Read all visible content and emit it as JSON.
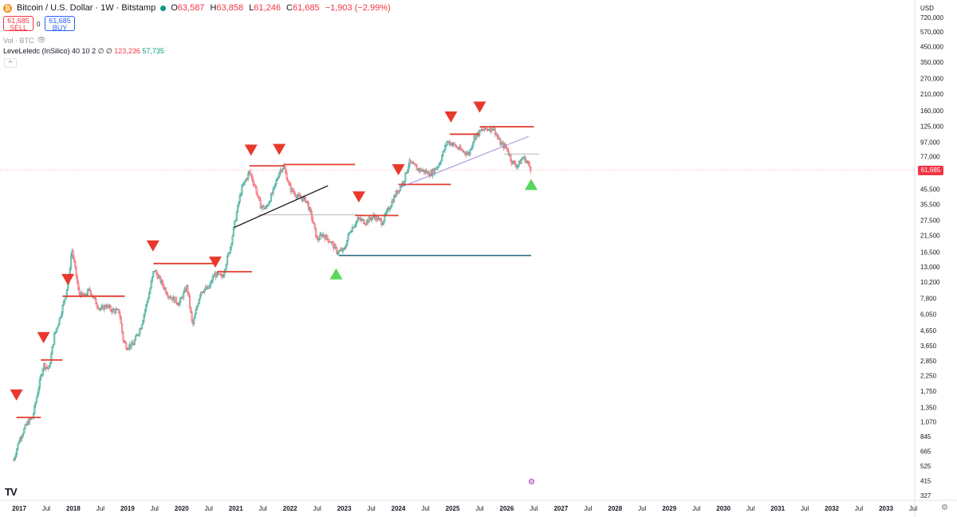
{
  "header": {
    "symbol_title": "Bitcoin / U.S. Dollar · 1W · Bitstamp",
    "ohlc": [
      {
        "k": "O",
        "v": "63,587"
      },
      {
        "k": "H",
        "v": "63,858"
      },
      {
        "k": "L",
        "v": "61,246"
      },
      {
        "k": "C",
        "v": "61,685"
      }
    ],
    "change": "−1,903 (−2.99%)"
  },
  "trade": {
    "sell_price": "61,685",
    "sell_label": "SELL",
    "buy_price": "61,685",
    "buy_label": "BUY",
    "spread": "0"
  },
  "volume_label": "Vol · BTC",
  "indicator": {
    "name": "LeveLeledc (InSilico) 40 10 2",
    "empty_marks": "∅ ∅",
    "value_red": "123,236",
    "value_green": "57,735"
  },
  "logo_text": "TV",
  "colors": {
    "up": "#089981",
    "down": "#f23645",
    "candle_up": "#8fc9be",
    "candle_down": "#f2a8ad",
    "level": "#e23b2e",
    "trend": "#1e1e1e",
    "support": "#2f6b85",
    "channel": "#9b7fd4",
    "marker_down": "#e8392c",
    "marker_up": "#59d65b"
  },
  "chart_data": {
    "type": "candlestick",
    "y_scale": "log",
    "currency_label": "USD",
    "last_price": "61,685",
    "ylim": [
      300,
      780000
    ],
    "xlim": [
      2017.0,
      2033.5
    ],
    "y_ticks": [
      "720,000",
      "570,000",
      "450,000",
      "350,000",
      "270,000",
      "210,000",
      "160,000",
      "125,000",
      "97,000",
      "77,000",
      "45,500",
      "35,500",
      "27,500",
      "21,500",
      "16,500",
      "13,000",
      "10,200",
      "7,800",
      "6,050",
      "4,650",
      "3,650",
      "2,850",
      "2,250",
      "1,750",
      "1,350",
      "1,070",
      "845",
      "665",
      "525",
      "415",
      "327"
    ],
    "x_ticks": [
      {
        "label": "2017",
        "t": 2017.0
      },
      {
        "label": "Jul",
        "t": 2017.5
      },
      {
        "label": "2018",
        "t": 2018.0
      },
      {
        "label": "Jul",
        "t": 2018.5
      },
      {
        "label": "2019",
        "t": 2019.0
      },
      {
        "label": "Jul",
        "t": 2019.5
      },
      {
        "label": "2020",
        "t": 2020.0
      },
      {
        "label": "Jul",
        "t": 2020.5
      },
      {
        "label": "2021",
        "t": 2021.0
      },
      {
        "label": "Jul",
        "t": 2021.5
      },
      {
        "label": "2022",
        "t": 2022.0
      },
      {
        "label": "Jul",
        "t": 2022.5
      },
      {
        "label": "2023",
        "t": 2023.0
      },
      {
        "label": "Jul",
        "t": 2023.5
      },
      {
        "label": "2024",
        "t": 2024.0
      },
      {
        "label": "Jul",
        "t": 2024.5
      },
      {
        "label": "2025",
        "t": 2025.0
      },
      {
        "label": "Jul",
        "t": 2025.5
      },
      {
        "label": "2026",
        "t": 2026.0
      },
      {
        "label": "Jul",
        "t": 2026.5
      },
      {
        "label": "2027",
        "t": 2027.0
      },
      {
        "label": "Jul",
        "t": 2027.5
      },
      {
        "label": "2028",
        "t": 2028.0
      },
      {
        "label": "Jul",
        "t": 2028.5
      },
      {
        "label": "2029",
        "t": 2029.0
      },
      {
        "label": "Jul",
        "t": 2029.5
      },
      {
        "label": "2030",
        "t": 2030.0
      },
      {
        "label": "Jul",
        "t": 2030.5
      },
      {
        "label": "2031",
        "t": 2031.0
      },
      {
        "label": "Jul",
        "t": 2031.5
      },
      {
        "label": "2032",
        "t": 2032.0
      },
      {
        "label": "Jul",
        "t": 2032.5
      },
      {
        "label": "2033",
        "t": 2033.0
      },
      {
        "label": "Jul",
        "t": 2033.5
      }
    ],
    "price_path": [
      [
        2016.9,
        580
      ],
      [
        2017.0,
        800
      ],
      [
        2017.15,
        1050
      ],
      [
        2017.25,
        1150
      ],
      [
        2017.35,
        1800
      ],
      [
        2017.45,
        2700
      ],
      [
        2017.55,
        2500
      ],
      [
        2017.65,
        4300
      ],
      [
        2017.75,
        5700
      ],
      [
        2017.85,
        8000
      ],
      [
        2017.92,
        11000
      ],
      [
        2017.97,
        17500
      ],
      [
        2018.05,
        11500
      ],
      [
        2018.1,
        8500
      ],
      [
        2018.2,
        8000
      ],
      [
        2018.3,
        9000
      ],
      [
        2018.4,
        7500
      ],
      [
        2018.5,
        6500
      ],
      [
        2018.6,
        7000
      ],
      [
        2018.7,
        6500
      ],
      [
        2018.85,
        6300
      ],
      [
        2018.92,
        4000
      ],
      [
        2018.98,
        3600
      ],
      [
        2019.1,
        3700
      ],
      [
        2019.25,
        5000
      ],
      [
        2019.4,
        8500
      ],
      [
        2019.49,
        12500
      ],
      [
        2019.6,
        10500
      ],
      [
        2019.75,
        8300
      ],
      [
        2019.95,
        7200
      ],
      [
        2020.1,
        9500
      ],
      [
        2020.2,
        5000
      ],
      [
        2020.35,
        8800
      ],
      [
        2020.5,
        9200
      ],
      [
        2020.6,
        11500
      ],
      [
        2020.75,
        11000
      ],
      [
        2020.9,
        18000
      ],
      [
        2021.0,
        29000
      ],
      [
        2021.1,
        45000
      ],
      [
        2021.25,
        60000
      ],
      [
        2021.35,
        48000
      ],
      [
        2021.45,
        35000
      ],
      [
        2021.55,
        33000
      ],
      [
        2021.7,
        45000
      ],
      [
        2021.8,
        60000
      ],
      [
        2021.88,
        66000
      ],
      [
        2022.0,
        46000
      ],
      [
        2022.15,
        40000
      ],
      [
        2022.3,
        38000
      ],
      [
        2022.4,
        29000
      ],
      [
        2022.5,
        20000
      ],
      [
        2022.6,
        22000
      ],
      [
        2022.75,
        19500
      ],
      [
        2022.87,
        16500
      ],
      [
        2023.0,
        17000
      ],
      [
        2023.1,
        23000
      ],
      [
        2023.25,
        28000
      ],
      [
        2023.4,
        26800
      ],
      [
        2023.55,
        29500
      ],
      [
        2023.7,
        26500
      ],
      [
        2023.85,
        35000
      ],
      [
        2023.95,
        42000
      ],
      [
        2024.1,
        52000
      ],
      [
        2024.2,
        70000
      ],
      [
        2024.35,
        63000
      ],
      [
        2024.5,
        60000
      ],
      [
        2024.6,
        58000
      ],
      [
        2024.75,
        68000
      ],
      [
        2024.9,
        98000
      ],
      [
        2025.0,
        94000
      ],
      [
        2025.15,
        85000
      ],
      [
        2025.3,
        80000
      ],
      [
        2025.4,
        105000
      ],
      [
        2025.55,
        118000
      ],
      [
        2025.75,
        122000
      ],
      [
        2025.88,
        95000
      ],
      [
        2026.0,
        88000
      ],
      [
        2026.1,
        70000
      ],
      [
        2026.2,
        66000
      ],
      [
        2026.3,
        76000
      ],
      [
        2026.38,
        70000
      ],
      [
        2026.45,
        61685
      ]
    ],
    "levels": [
      {
        "t1": 2016.95,
        "t2": 2017.4,
        "price": 1150
      },
      {
        "t1": 2017.4,
        "t2": 2017.8,
        "price": 2900
      },
      {
        "t1": 2017.8,
        "t2": 2018.95,
        "price": 8100
      },
      {
        "t1": 2019.48,
        "t2": 2020.65,
        "price": 13700
      },
      {
        "t1": 2020.65,
        "t2": 2021.3,
        "price": 12000
      },
      {
        "t1": 2021.25,
        "t2": 2021.9,
        "price": 66000
      },
      {
        "t1": 2021.9,
        "t2": 2023.2,
        "price": 67500
      },
      {
        "t1": 2023.2,
        "t2": 2024.0,
        "price": 29700
      },
      {
        "t1": 2024.0,
        "t2": 2024.97,
        "price": 49000
      },
      {
        "t1": 2024.95,
        "t2": 2025.5,
        "price": 110000
      },
      {
        "t1": 2025.5,
        "t2": 2026.5,
        "price": 124000
      }
    ],
    "support_line": {
      "t1": 2022.9,
      "t2": 2026.45,
      "price": 15600
    },
    "trend_line": {
      "t1": 2020.97,
      "t2": 2022.7,
      "p1": 24500,
      "p2": 48000
    },
    "channel_line": {
      "t1": 2024.05,
      "t2": 2026.4,
      "p1": 47000,
      "p2": 106000
    },
    "gray_lines": [
      {
        "t1": 2021.4,
        "t2": 2023.35,
        "price": 30000
      },
      {
        "t1": 2025.95,
        "t2": 2026.6,
        "price": 80000
      }
    ],
    "markers_down": [
      {
        "t": 2016.95,
        "price": 1650
      },
      {
        "t": 2017.45,
        "price": 4150
      },
      {
        "t": 2017.9,
        "price": 10600
      },
      {
        "t": 2019.47,
        "price": 18200
      },
      {
        "t": 2020.62,
        "price": 14000
      },
      {
        "t": 2021.28,
        "price": 85000
      },
      {
        "t": 2021.8,
        "price": 86000
      },
      {
        "t": 2023.27,
        "price": 40000
      },
      {
        "t": 2024.0,
        "price": 62000
      },
      {
        "t": 2024.97,
        "price": 145000
      },
      {
        "t": 2025.5,
        "price": 170000
      }
    ],
    "markers_up": [
      {
        "t": 2022.85,
        "price": 11600
      },
      {
        "t": 2026.45,
        "price": 49000
      }
    ]
  }
}
